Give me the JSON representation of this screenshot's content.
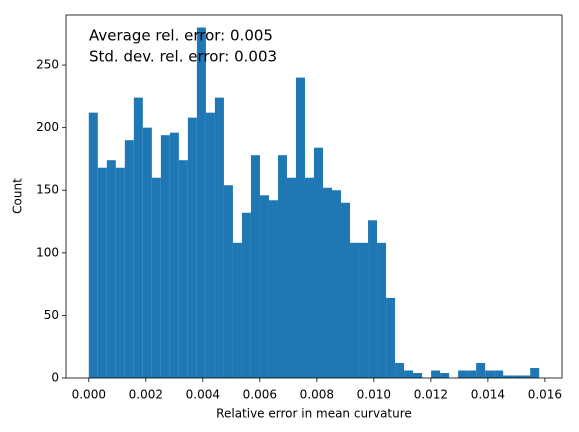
{
  "chart_data": {
    "type": "histogram",
    "xlabel": "Relative error in mean curvature",
    "ylabel": "Count",
    "annotations": [
      "Average rel. error: 0.005",
      "Std. dev. rel. error: 0.003"
    ],
    "color": "#1f77b4",
    "bins": [
      0,
      0.000316,
      0.000632,
      0.000948,
      0.001264,
      0.00158,
      0.001896,
      0.002212,
      0.002528,
      0.002844,
      0.00316,
      0.003476,
      0.003792,
      0.004108,
      0.004424,
      0.00474,
      0.005056,
      0.005372,
      0.005688,
      0.006004,
      0.00632,
      0.006636,
      0.006952,
      0.007268,
      0.007584,
      0.0079,
      0.008216,
      0.008532,
      0.008848,
      0.009164,
      0.00948,
      0.009796,
      0.010112,
      0.010428,
      0.010744,
      0.01106,
      0.011376,
      0.011692,
      0.012008,
      0.012324,
      0.01264,
      0.012956,
      0.013272,
      0.013588,
      0.013904,
      0.01422,
      0.014536,
      0.014852,
      0.015168,
      0.015484,
      0.0158
    ],
    "values": [
      212,
      168,
      174,
      168,
      190,
      224,
      200,
      160,
      194,
      196,
      174,
      208,
      280,
      212,
      224,
      154,
      108,
      132,
      178,
      146,
      142,
      178,
      160,
      240,
      160,
      184,
      152,
      150,
      140,
      108,
      108,
      126,
      108,
      64,
      12,
      6,
      4,
      0,
      6,
      4,
      0,
      6,
      6,
      12,
      6,
      6,
      2,
      2,
      2,
      8
    ],
    "xlim": [
      -0.0008,
      0.0166
    ],
    "ylim": [
      0,
      290
    ],
    "xticks": [
      {
        "value": 0,
        "label": "0.000"
      },
      {
        "value": 0.002,
        "label": "0.002"
      },
      {
        "value": 0.004,
        "label": "0.004"
      },
      {
        "value": 0.006,
        "label": "0.006"
      },
      {
        "value": 0.008,
        "label": "0.008"
      },
      {
        "value": 0.01,
        "label": "0.010"
      },
      {
        "value": 0.012,
        "label": "0.012"
      },
      {
        "value": 0.014,
        "label": "0.014"
      },
      {
        "value": 0.016,
        "label": "0.016"
      }
    ],
    "yticks": [
      0,
      50,
      100,
      150,
      200,
      250
    ]
  }
}
